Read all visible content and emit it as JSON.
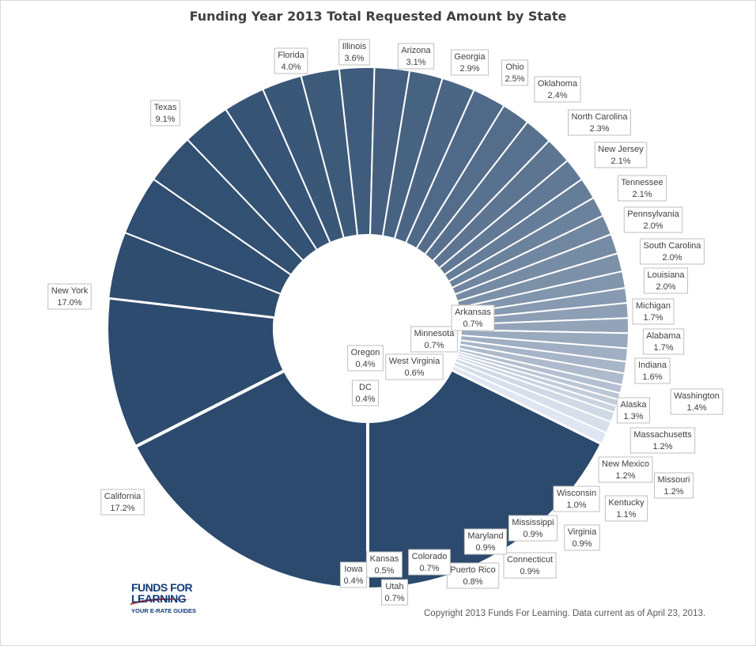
{
  "chart_data": {
    "type": "pie",
    "title": "Funding Year 2013 Total Requested Amount by State",
    "labels": [
      "California",
      "New York",
      "Texas",
      "Florida",
      "Illinois",
      "Arizona",
      "Georgia",
      "Ohio",
      "Oklahoma",
      "North Carolina",
      "New Jersey",
      "Tennessee",
      "Pennsylvania",
      "South Carolina",
      "Louisiana",
      "Michigan",
      "Alabama",
      "Indiana",
      "Washington",
      "Alaska",
      "Massachusetts",
      "New Mexico",
      "Missouri",
      "Kentucky",
      "Wisconsin",
      "Virginia",
      "Mississippi",
      "Connecticut",
      "Maryland",
      "Puerto Rico",
      "Colorado",
      "Utah",
      "Kansas",
      "Iowa",
      "DC",
      "Oregon",
      "West Virginia",
      "Minnesota",
      "Arkansas"
    ],
    "values": [
      17.2,
      17.0,
      9.1,
      4.0,
      3.6,
      3.1,
      2.9,
      2.5,
      2.4,
      2.3,
      2.1,
      2.1,
      2.0,
      2.0,
      2.0,
      1.7,
      1.7,
      1.6,
      1.4,
      1.3,
      1.2,
      1.2,
      1.2,
      1.1,
      1.0,
      0.9,
      0.9,
      0.9,
      0.9,
      0.8,
      0.7,
      0.7,
      0.5,
      0.4,
      0.4,
      0.4,
      0.6,
      0.7,
      0.7
    ],
    "value_labels": [
      "17.2%",
      "17.0%",
      "9.1%",
      "4.0%",
      "3.6%",
      "3.1%",
      "2.9%",
      "2.5%",
      "2.4%",
      "2.3%",
      "2.1%",
      "2.1%",
      "2.0%",
      "2.0%",
      "2.0%",
      "1.7%",
      "1.7%",
      "1.6%",
      "1.4%",
      "1.3%",
      "1.2%",
      "1.2%",
      "1.2%",
      "1.1%",
      "1.0%",
      "0.9%",
      "0.9%",
      "0.9%",
      "0.9%",
      "0.8%",
      "0.7%",
      "0.7%",
      "0.5%",
      "0.4%",
      "0.4%",
      "0.4%",
      "0.6%",
      "0.7%",
      "0.7%"
    ],
    "colors": {
      "start": "#2b4a6d",
      "end": "#dfe6f1",
      "accent": "#1e3c6a"
    }
  },
  "copyright": "Copyright 2013 Funds For Learning.  Data current as of April 23, 2013.",
  "logo": {
    "line1": "FUNDS FOR",
    "line2": "LEARNING",
    "line3": "YOUR E-RATE GUIDES"
  }
}
